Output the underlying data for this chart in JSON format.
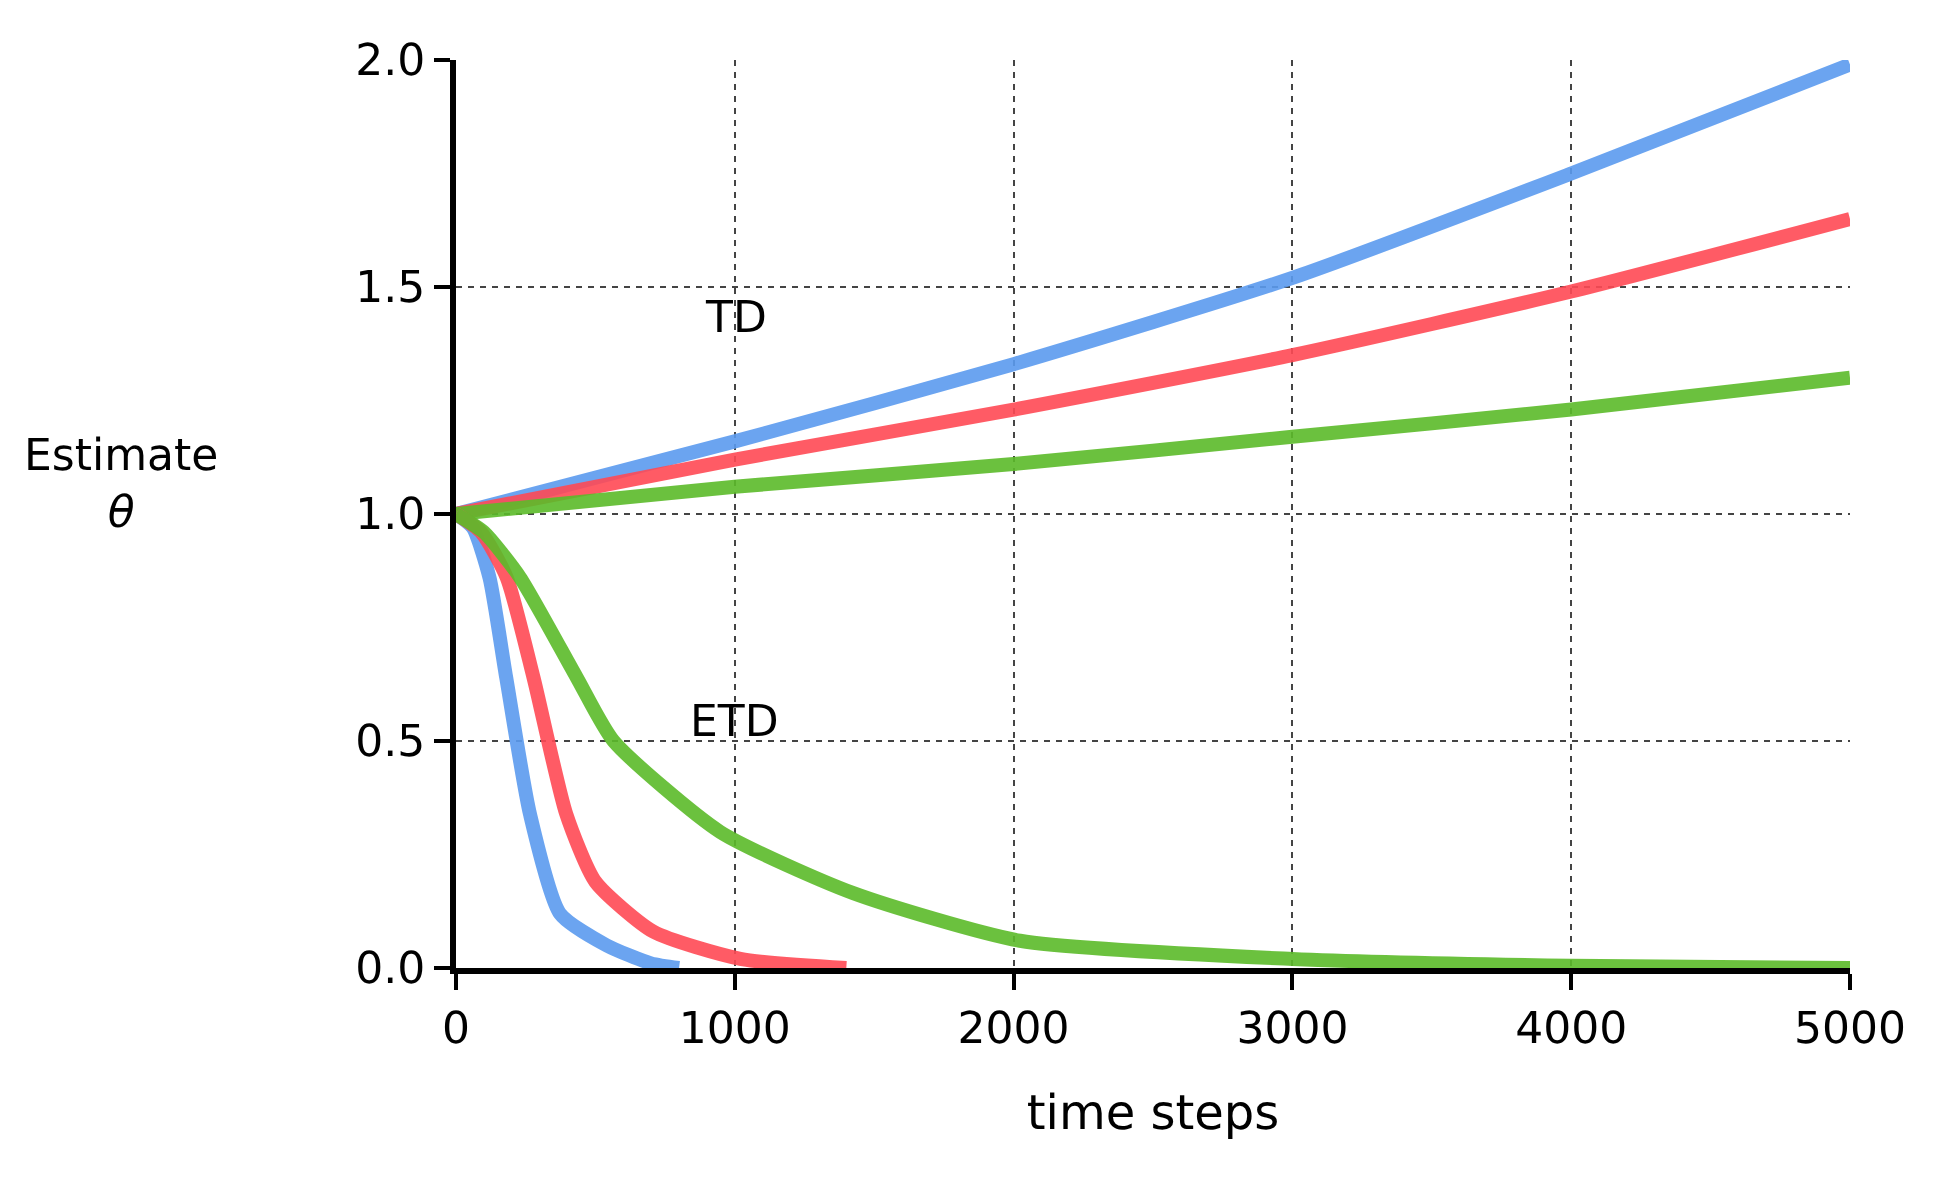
{
  "chart_data": {
    "type": "line",
    "xlabel": "time steps",
    "ylabel": "Estimate\nθ",
    "xlim": [
      0,
      5000
    ],
    "ylim": [
      0,
      2
    ],
    "xticks": [
      0,
      1000,
      2000,
      3000,
      4000,
      5000
    ],
    "yticks": [
      {
        "value": 0,
        "label": "0.0"
      },
      {
        "value": 0.5,
        "label": "0.5"
      },
      {
        "value": 1,
        "label": "1.0"
      },
      {
        "value": 1.5,
        "label": "1.5"
      },
      {
        "value": 2,
        "label": "2.0"
      }
    ],
    "grid": true,
    "line_style": "solid",
    "marker": "none",
    "annotations": [
      "TD",
      "ETD"
    ],
    "series": [
      {
        "color": "#5b9bef",
        "x": [
          0,
          1000,
          2000,
          3000,
          4000,
          5000
        ],
        "values": [
          1,
          1.16,
          1.33,
          1.52,
          1.75,
          1.99
        ]
      },
      {
        "color": "#ff4a55",
        "x": [
          0,
          1000,
          2000,
          3000,
          4000,
          5000
        ],
        "values": [
          1,
          1.12,
          1.23,
          1.35,
          1.49,
          1.65
        ]
      },
      {
        "color": "#5cbb2a",
        "x": [
          0,
          1000,
          2000,
          3000,
          4000,
          5000
        ],
        "values": [
          1,
          1.06,
          1.11,
          1.17,
          1.23,
          1.3
        ]
      },
      {
        "color": "#5b9bef",
        "x": [
          0,
          60,
          120,
          180,
          265,
          373,
          540,
          700,
          800
        ],
        "values": [
          1,
          0.97,
          0.86,
          0.64,
          0.34,
          0.12,
          0.05,
          0.01,
          0
        ]
      },
      {
        "color": "#ff4a55",
        "x": [
          0,
          90,
          182,
          278,
          395,
          500,
          708,
          1020,
          1400
        ],
        "values": [
          1,
          0.96,
          0.86,
          0.64,
          0.34,
          0.19,
          0.08,
          0.02,
          0
        ]
      },
      {
        "color": "#5cbb2a",
        "x": [
          0,
          100,
          230,
          433,
          565,
          947,
          1425,
          2023,
          3000,
          4000,
          5000
        ],
        "values": [
          1,
          0.96,
          0.86,
          0.64,
          0.5,
          0.3,
          0.165,
          0.06,
          0.02,
          0.005,
          0
        ]
      }
    ]
  }
}
